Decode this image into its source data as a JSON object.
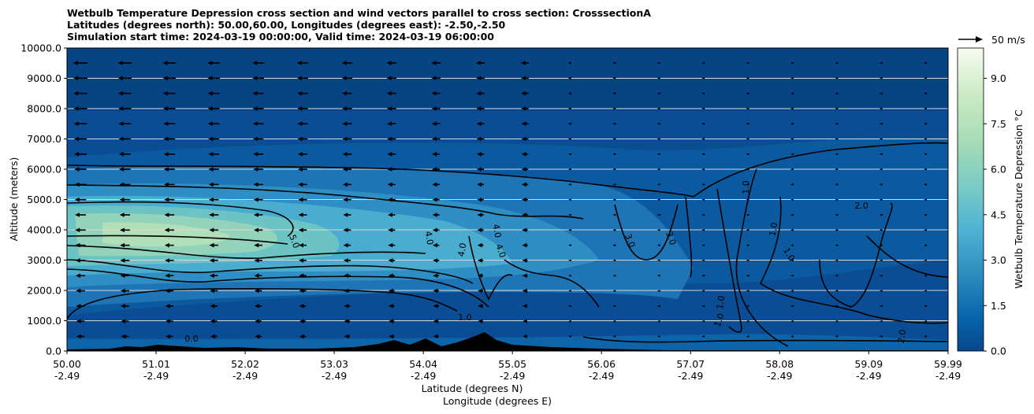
{
  "title_lines": [
    "Wetbulb Temperature Depression cross section and wind vectors parallel to cross section: CrosssectionA",
    "Latitudes (degrees north): 50.00,60.00, Longitudes (degrees east): -2.50,-2.50",
    "Simulation start time: 2024-03-19 00:00:00, Valid time: 2024-03-19 06:00:00"
  ],
  "chart_data": {
    "type": "contour",
    "ylabel": "Altitude (meters)",
    "xlabel_lines": [
      "Latitude (degrees N)",
      "Longitude (degrees E)"
    ],
    "ylim": [
      0,
      10000
    ],
    "y_ticks": [
      "0.0",
      "1000.0",
      "2000.0",
      "3000.0",
      "4000.0",
      "5000.0",
      "6000.0",
      "7000.0",
      "8000.0",
      "9000.0",
      "10000.0"
    ],
    "x_ticks": [
      {
        "lat": "50.00",
        "lon": "-2.49"
      },
      {
        "lat": "51.01",
        "lon": "-2.49"
      },
      {
        "lat": "52.02",
        "lon": "-2.49"
      },
      {
        "lat": "53.03",
        "lon": "-2.49"
      },
      {
        "lat": "54.04",
        "lon": "-2.49"
      },
      {
        "lat": "55.05",
        "lon": "-2.49"
      },
      {
        "lat": "56.06",
        "lon": "-2.49"
      },
      {
        "lat": "57.07",
        "lon": "-2.49"
      },
      {
        "lat": "58.08",
        "lon": "-2.49"
      },
      {
        "lat": "59.09",
        "lon": "-2.49"
      },
      {
        "lat": "59.99",
        "lon": "-2.49"
      }
    ],
    "xlim": [
      50.0,
      59.99
    ],
    "grid": "horizontal",
    "colorbar": {
      "label": "Wetbulb Temperature Depression °C",
      "range": [
        0,
        10
      ],
      "ticks": [
        "0.0",
        "1.5",
        "3.0",
        "4.5",
        "6.0",
        "7.5",
        "9.0"
      ],
      "colormap": "GnBu"
    },
    "quiver_key": "50 m/s",
    "contour_labels": [
      "0.0",
      "1.0",
      "1.0",
      "1.0",
      "1.0",
      "1.0",
      "1.0",
      "2.0",
      "2.0",
      "3.0",
      "3.0",
      "4.0",
      "4.0",
      "4.0",
      "4.0",
      "5.0"
    ]
  }
}
